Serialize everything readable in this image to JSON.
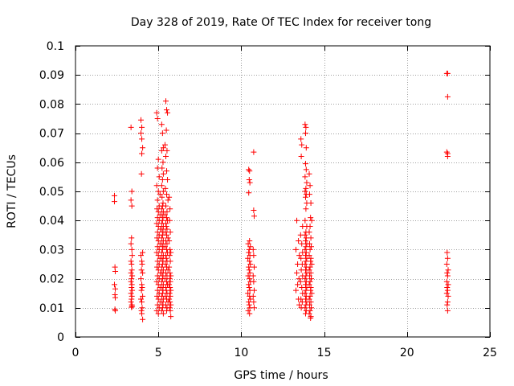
{
  "chart_data": {
    "type": "scatter",
    "title": "Day 328 of 2019, Rate Of TEC Index for receiver tong",
    "xlabel": "GPS time / hours",
    "ylabel": "ROTI / TECUs",
    "xlim": [
      0,
      25
    ],
    "ylim": [
      0,
      0.1
    ],
    "grid": true,
    "marker": "+",
    "marker_color": "#ff0000",
    "xticks": [
      {
        "value": 0,
        "label": "0"
      },
      {
        "value": 5,
        "label": "5"
      },
      {
        "value": 10,
        "label": "10"
      },
      {
        "value": 15,
        "label": "15"
      },
      {
        "value": 20,
        "label": "20"
      },
      {
        "value": 25,
        "label": "25"
      }
    ],
    "yticks": [
      {
        "value": 0,
        "label": "0"
      },
      {
        "value": 0.01,
        "label": "0.01"
      },
      {
        "value": 0.02,
        "label": "0.02"
      },
      {
        "value": 0.03,
        "label": "0.03"
      },
      {
        "value": 0.04,
        "label": "0.04"
      },
      {
        "value": 0.05,
        "label": "0.05"
      },
      {
        "value": 0.06,
        "label": "0.06"
      },
      {
        "value": 0.07,
        "label": "0.07"
      },
      {
        "value": 0.08,
        "label": "0.08"
      },
      {
        "value": 0.09,
        "label": "0.09"
      },
      {
        "value": 0.1,
        "label": "0.1"
      }
    ],
    "points": [
      [
        2.35,
        0.0485
      ],
      [
        2.35,
        0.0465
      ],
      [
        2.38,
        0.024
      ],
      [
        2.4,
        0.0225
      ],
      [
        2.35,
        0.018
      ],
      [
        2.4,
        0.0165
      ],
      [
        2.38,
        0.0145
      ],
      [
        2.4,
        0.0135
      ],
      [
        2.38,
        0.0095
      ],
      [
        2.4,
        0.009
      ],
      [
        3.35,
        0.072
      ],
      [
        3.4,
        0.05
      ],
      [
        3.35,
        0.047
      ],
      [
        3.4,
        0.045
      ],
      [
        3.38,
        0.034
      ],
      [
        3.35,
        0.032
      ],
      [
        3.4,
        0.03
      ],
      [
        3.42,
        0.028
      ],
      [
        3.35,
        0.026
      ],
      [
        3.38,
        0.025
      ],
      [
        3.4,
        0.023
      ],
      [
        3.35,
        0.022
      ],
      [
        3.42,
        0.021
      ],
      [
        3.38,
        0.02
      ],
      [
        3.35,
        0.019
      ],
      [
        3.4,
        0.018
      ],
      [
        3.38,
        0.017
      ],
      [
        3.42,
        0.016
      ],
      [
        3.35,
        0.015
      ],
      [
        3.4,
        0.014
      ],
      [
        3.38,
        0.013
      ],
      [
        3.35,
        0.012
      ],
      [
        3.4,
        0.011
      ],
      [
        3.42,
        0.0105
      ],
      [
        3.38,
        0.0102
      ],
      [
        3.95,
        0.0745
      ],
      [
        4.0,
        0.072
      ],
      [
        3.95,
        0.07
      ],
      [
        4.0,
        0.068
      ],
      [
        4.05,
        0.065
      ],
      [
        4.0,
        0.063
      ],
      [
        3.98,
        0.056
      ],
      [
        4.05,
        0.029
      ],
      [
        3.95,
        0.028
      ],
      [
        4.0,
        0.026
      ],
      [
        4.02,
        0.025
      ],
      [
        3.98,
        0.023
      ],
      [
        4.05,
        0.022
      ],
      [
        3.95,
        0.02
      ],
      [
        4.0,
        0.018
      ],
      [
        4.02,
        0.017
      ],
      [
        3.98,
        0.016
      ],
      [
        4.05,
        0.014
      ],
      [
        3.95,
        0.013
      ],
      [
        4.0,
        0.012
      ],
      [
        4.02,
        0.01
      ],
      [
        3.98,
        0.009
      ],
      [
        4.0,
        0.008
      ],
      [
        4.05,
        0.006
      ],
      [
        4.9,
        0.077
      ],
      [
        4.95,
        0.075
      ],
      [
        5.0,
        0.061
      ],
      [
        4.95,
        0.058
      ],
      [
        5.05,
        0.055
      ],
      [
        4.9,
        0.052
      ],
      [
        5.0,
        0.05
      ],
      [
        5.1,
        0.049
      ],
      [
        4.95,
        0.047
      ],
      [
        5.05,
        0.045
      ],
      [
        4.92,
        0.044
      ],
      [
        5.0,
        0.043
      ],
      [
        5.1,
        0.042
      ],
      [
        4.95,
        0.041
      ],
      [
        5.05,
        0.04
      ],
      [
        4.9,
        0.039
      ],
      [
        5.0,
        0.038
      ],
      [
        5.12,
        0.037
      ],
      [
        4.95,
        0.036
      ],
      [
        5.05,
        0.035
      ],
      [
        4.92,
        0.034
      ],
      [
        5.0,
        0.033
      ],
      [
        5.1,
        0.032
      ],
      [
        4.95,
        0.031
      ],
      [
        5.05,
        0.03
      ],
      [
        4.9,
        0.029
      ],
      [
        5.0,
        0.028
      ],
      [
        5.1,
        0.027
      ],
      [
        4.95,
        0.026
      ],
      [
        5.05,
        0.025
      ],
      [
        4.92,
        0.024
      ],
      [
        5.0,
        0.023
      ],
      [
        5.12,
        0.022
      ],
      [
        4.95,
        0.021
      ],
      [
        5.05,
        0.02
      ],
      [
        4.9,
        0.019
      ],
      [
        5.0,
        0.018
      ],
      [
        5.1,
        0.017
      ],
      [
        4.95,
        0.016
      ],
      [
        5.05,
        0.015
      ],
      [
        4.92,
        0.014
      ],
      [
        5.0,
        0.013
      ],
      [
        5.1,
        0.012
      ],
      [
        4.95,
        0.011
      ],
      [
        5.05,
        0.01
      ],
      [
        4.9,
        0.009
      ],
      [
        5.0,
        0.008
      ],
      [
        5.2,
        0.073
      ],
      [
        5.25,
        0.07
      ],
      [
        5.3,
        0.065
      ],
      [
        5.2,
        0.064
      ],
      [
        5.28,
        0.06
      ],
      [
        5.22,
        0.058
      ],
      [
        5.3,
        0.056
      ],
      [
        5.25,
        0.054
      ],
      [
        5.2,
        0.052
      ],
      [
        5.3,
        0.05
      ],
      [
        5.22,
        0.048
      ],
      [
        5.28,
        0.046
      ],
      [
        5.25,
        0.045
      ],
      [
        5.2,
        0.044
      ],
      [
        5.3,
        0.043
      ],
      [
        5.22,
        0.042
      ],
      [
        5.28,
        0.041
      ],
      [
        5.25,
        0.04
      ],
      [
        5.2,
        0.039
      ],
      [
        5.3,
        0.038
      ],
      [
        5.22,
        0.037
      ],
      [
        5.28,
        0.036
      ],
      [
        5.25,
        0.035
      ],
      [
        5.2,
        0.034
      ],
      [
        5.3,
        0.033
      ],
      [
        5.22,
        0.032
      ],
      [
        5.28,
        0.031
      ],
      [
        5.25,
        0.03
      ],
      [
        5.2,
        0.029
      ],
      [
        5.3,
        0.028
      ],
      [
        5.22,
        0.027
      ],
      [
        5.28,
        0.026
      ],
      [
        5.25,
        0.025
      ],
      [
        5.2,
        0.024
      ],
      [
        5.3,
        0.023
      ],
      [
        5.22,
        0.022
      ],
      [
        5.28,
        0.021
      ],
      [
        5.25,
        0.02
      ],
      [
        5.2,
        0.019
      ],
      [
        5.3,
        0.018
      ],
      [
        5.22,
        0.017
      ],
      [
        5.28,
        0.016
      ],
      [
        5.25,
        0.015
      ],
      [
        5.2,
        0.014
      ],
      [
        5.3,
        0.013
      ],
      [
        5.22,
        0.012
      ],
      [
        5.28,
        0.011
      ],
      [
        5.25,
        0.01
      ],
      [
        5.2,
        0.009
      ],
      [
        5.3,
        0.008
      ],
      [
        5.45,
        0.081
      ],
      [
        5.5,
        0.078
      ],
      [
        5.55,
        0.077
      ],
      [
        5.48,
        0.071
      ],
      [
        5.4,
        0.066
      ],
      [
        5.52,
        0.064
      ],
      [
        5.45,
        0.062
      ],
      [
        5.5,
        0.057
      ],
      [
        5.55,
        0.054
      ],
      [
        5.42,
        0.051
      ],
      [
        5.5,
        0.049
      ],
      [
        5.58,
        0.047
      ],
      [
        5.45,
        0.045
      ],
      [
        5.52,
        0.043
      ],
      [
        5.4,
        0.042
      ],
      [
        5.5,
        0.041
      ],
      [
        5.55,
        0.04
      ],
      [
        5.45,
        0.039
      ],
      [
        5.48,
        0.038
      ],
      [
        5.52,
        0.037
      ],
      [
        5.42,
        0.036
      ],
      [
        5.5,
        0.035
      ],
      [
        5.58,
        0.034
      ],
      [
        5.45,
        0.033
      ],
      [
        5.52,
        0.032
      ],
      [
        5.4,
        0.031
      ],
      [
        5.5,
        0.03
      ],
      [
        5.55,
        0.029
      ],
      [
        5.45,
        0.028
      ],
      [
        5.48,
        0.027
      ],
      [
        5.52,
        0.026
      ],
      [
        5.42,
        0.025
      ],
      [
        5.5,
        0.024
      ],
      [
        5.58,
        0.023
      ],
      [
        5.45,
        0.022
      ],
      [
        5.52,
        0.021
      ],
      [
        5.4,
        0.02
      ],
      [
        5.5,
        0.019
      ],
      [
        5.55,
        0.018
      ],
      [
        5.45,
        0.017
      ],
      [
        5.48,
        0.016
      ],
      [
        5.52,
        0.015
      ],
      [
        5.42,
        0.014
      ],
      [
        5.5,
        0.013
      ],
      [
        5.58,
        0.012
      ],
      [
        5.45,
        0.011
      ],
      [
        5.52,
        0.01
      ],
      [
        5.5,
        0.009
      ],
      [
        5.65,
        0.048
      ],
      [
        5.7,
        0.044
      ],
      [
        5.68,
        0.04
      ],
      [
        5.72,
        0.036
      ],
      [
        5.65,
        0.033
      ],
      [
        5.7,
        0.03
      ],
      [
        5.75,
        0.029
      ],
      [
        5.68,
        0.028
      ],
      [
        5.72,
        0.026
      ],
      [
        5.65,
        0.024
      ],
      [
        5.7,
        0.022
      ],
      [
        5.75,
        0.021
      ],
      [
        5.68,
        0.02
      ],
      [
        5.72,
        0.019
      ],
      [
        5.65,
        0.018
      ],
      [
        5.7,
        0.017
      ],
      [
        5.75,
        0.016
      ],
      [
        5.68,
        0.015
      ],
      [
        5.72,
        0.014
      ],
      [
        5.65,
        0.013
      ],
      [
        5.7,
        0.012
      ],
      [
        5.75,
        0.011
      ],
      [
        5.68,
        0.01
      ],
      [
        5.72,
        0.009
      ],
      [
        5.75,
        0.007
      ],
      [
        10.45,
        0.0575
      ],
      [
        10.5,
        0.057
      ],
      [
        10.48,
        0.054
      ],
      [
        10.52,
        0.053
      ],
      [
        10.45,
        0.0495
      ],
      [
        10.5,
        0.033
      ],
      [
        10.42,
        0.032
      ],
      [
        10.55,
        0.031
      ],
      [
        10.48,
        0.03
      ],
      [
        10.45,
        0.029
      ],
      [
        10.52,
        0.028
      ],
      [
        10.4,
        0.027
      ],
      [
        10.5,
        0.026
      ],
      [
        10.55,
        0.025
      ],
      [
        10.45,
        0.024
      ],
      [
        10.48,
        0.023
      ],
      [
        10.52,
        0.022
      ],
      [
        10.42,
        0.021
      ],
      [
        10.5,
        0.02
      ],
      [
        10.55,
        0.019
      ],
      [
        10.45,
        0.018
      ],
      [
        10.48,
        0.017
      ],
      [
        10.52,
        0.016
      ],
      [
        10.4,
        0.015
      ],
      [
        10.5,
        0.014
      ],
      [
        10.55,
        0.013
      ],
      [
        10.45,
        0.012
      ],
      [
        10.48,
        0.011
      ],
      [
        10.52,
        0.01
      ],
      [
        10.42,
        0.009
      ],
      [
        10.5,
        0.008
      ],
      [
        10.75,
        0.0635
      ],
      [
        10.75,
        0.0435
      ],
      [
        10.78,
        0.0415
      ],
      [
        10.72,
        0.03
      ],
      [
        10.75,
        0.028
      ],
      [
        10.78,
        0.024
      ],
      [
        10.72,
        0.021
      ],
      [
        10.75,
        0.019
      ],
      [
        10.78,
        0.016
      ],
      [
        10.72,
        0.014
      ],
      [
        10.75,
        0.012
      ],
      [
        10.78,
        0.01
      ],
      [
        13.35,
        0.04
      ],
      [
        13.45,
        0.033
      ],
      [
        13.3,
        0.03
      ],
      [
        13.5,
        0.028
      ],
      [
        13.4,
        0.025
      ],
      [
        13.35,
        0.022
      ],
      [
        13.48,
        0.02
      ],
      [
        13.4,
        0.018
      ],
      [
        13.3,
        0.016
      ],
      [
        13.45,
        0.013
      ],
      [
        13.5,
        0.011
      ],
      [
        13.6,
        0.068
      ],
      [
        13.65,
        0.066
      ],
      [
        13.62,
        0.062
      ],
      [
        13.7,
        0.038
      ],
      [
        13.58,
        0.035
      ],
      [
        13.65,
        0.032
      ],
      [
        13.7,
        0.029
      ],
      [
        13.6,
        0.027
      ],
      [
        13.68,
        0.025
      ],
      [
        13.62,
        0.023
      ],
      [
        13.7,
        0.021
      ],
      [
        13.58,
        0.019
      ],
      [
        13.65,
        0.017
      ],
      [
        13.7,
        0.015
      ],
      [
        13.6,
        0.013
      ],
      [
        13.68,
        0.012
      ],
      [
        13.62,
        0.01
      ],
      [
        13.85,
        0.073
      ],
      [
        13.9,
        0.072
      ],
      [
        13.88,
        0.07
      ],
      [
        13.92,
        0.065
      ],
      [
        13.88,
        0.0595
      ],
      [
        13.92,
        0.0575
      ],
      [
        13.85,
        0.055
      ],
      [
        13.95,
        0.053
      ],
      [
        13.9,
        0.051
      ],
      [
        13.85,
        0.05
      ],
      [
        13.92,
        0.049
      ],
      [
        13.88,
        0.048
      ],
      [
        13.95,
        0.046
      ],
      [
        13.9,
        0.044
      ],
      [
        13.85,
        0.04
      ],
      [
        13.95,
        0.038
      ],
      [
        13.9,
        0.036
      ],
      [
        13.85,
        0.035
      ],
      [
        13.92,
        0.034
      ],
      [
        13.88,
        0.033
      ],
      [
        13.95,
        0.032
      ],
      [
        13.9,
        0.031
      ],
      [
        13.85,
        0.03
      ],
      [
        13.92,
        0.029
      ],
      [
        13.88,
        0.028
      ],
      [
        13.95,
        0.027
      ],
      [
        13.9,
        0.026
      ],
      [
        13.85,
        0.025
      ],
      [
        13.92,
        0.024
      ],
      [
        13.88,
        0.023
      ],
      [
        13.95,
        0.022
      ],
      [
        13.9,
        0.021
      ],
      [
        13.85,
        0.02
      ],
      [
        13.92,
        0.019
      ],
      [
        13.88,
        0.018
      ],
      [
        13.95,
        0.017
      ],
      [
        13.9,
        0.016
      ],
      [
        13.85,
        0.015
      ],
      [
        13.92,
        0.014
      ],
      [
        13.88,
        0.013
      ],
      [
        13.95,
        0.012
      ],
      [
        13.9,
        0.011
      ],
      [
        13.85,
        0.01
      ],
      [
        13.92,
        0.009
      ],
      [
        13.88,
        0.008
      ],
      [
        14.1,
        0.056
      ],
      [
        14.15,
        0.052
      ],
      [
        14.12,
        0.049
      ],
      [
        14.2,
        0.046
      ],
      [
        14.18,
        0.041
      ],
      [
        14.25,
        0.04
      ],
      [
        14.15,
        0.038
      ],
      [
        14.1,
        0.036
      ],
      [
        14.2,
        0.034
      ],
      [
        14.12,
        0.032
      ],
      [
        14.22,
        0.031
      ],
      [
        14.15,
        0.03
      ],
      [
        14.1,
        0.028
      ],
      [
        14.2,
        0.027
      ],
      [
        14.18,
        0.026
      ],
      [
        14.25,
        0.025
      ],
      [
        14.15,
        0.024
      ],
      [
        14.1,
        0.023
      ],
      [
        14.2,
        0.022
      ],
      [
        14.12,
        0.021
      ],
      [
        14.22,
        0.02
      ],
      [
        14.15,
        0.019
      ],
      [
        14.1,
        0.018
      ],
      [
        14.2,
        0.017
      ],
      [
        14.18,
        0.016
      ],
      [
        14.25,
        0.015
      ],
      [
        14.15,
        0.014
      ],
      [
        14.1,
        0.013
      ],
      [
        14.2,
        0.012
      ],
      [
        14.12,
        0.011
      ],
      [
        14.22,
        0.01
      ],
      [
        14.15,
        0.009
      ],
      [
        14.1,
        0.008
      ],
      [
        14.2,
        0.007
      ],
      [
        14.18,
        0.0065
      ],
      [
        22.4,
        0.0905
      ],
      [
        22.45,
        0.0905
      ],
      [
        22.45,
        0.0825
      ],
      [
        22.4,
        0.0635
      ],
      [
        22.45,
        0.063
      ],
      [
        22.45,
        0.062
      ],
      [
        22.42,
        0.029
      ],
      [
        22.45,
        0.027
      ],
      [
        22.4,
        0.025
      ],
      [
        22.48,
        0.023
      ],
      [
        22.42,
        0.022
      ],
      [
        22.45,
        0.021
      ],
      [
        22.4,
        0.019
      ],
      [
        22.48,
        0.018
      ],
      [
        22.42,
        0.017
      ],
      [
        22.45,
        0.016
      ],
      [
        22.4,
        0.015
      ],
      [
        22.48,
        0.014
      ],
      [
        22.45,
        0.012
      ],
      [
        22.42,
        0.011
      ],
      [
        22.45,
        0.009
      ]
    ]
  }
}
